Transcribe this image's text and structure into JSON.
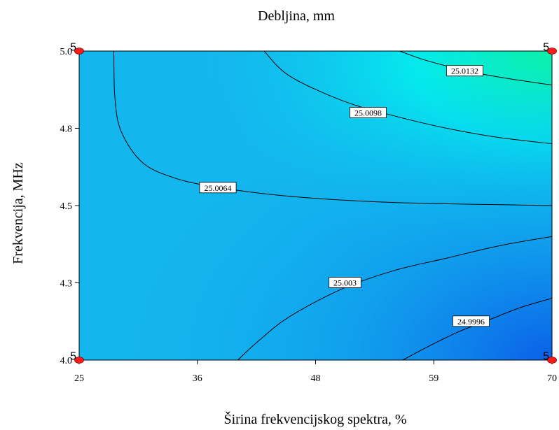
{
  "chart_data": {
    "type": "contour",
    "title": "Debljina, mm",
    "xlabel": "Širina frekvencijskog spektra, %",
    "ylabel": "Frekvencija, MHz",
    "xlim": [
      25,
      70
    ],
    "ylim": [
      4.0,
      5.0
    ],
    "x_ticks": [
      {
        "value": 25,
        "label": "25"
      },
      {
        "value": 36.25,
        "label": "36"
      },
      {
        "value": 47.5,
        "label": "48"
      },
      {
        "value": 58.75,
        "label": "59"
      },
      {
        "value": 70,
        "label": "70"
      }
    ],
    "y_ticks": [
      {
        "value": 4.0,
        "label": "4.0"
      },
      {
        "value": 4.25,
        "label": "4.3"
      },
      {
        "value": 4.5,
        "label": "4.5"
      },
      {
        "value": 4.75,
        "label": "4.8"
      },
      {
        "value": 5.0,
        "label": "5.0"
      }
    ],
    "contours": [
      {
        "label": "25.0132",
        "label_at": [
          61.7,
          4.935
        ],
        "points": [
          [
            55.5,
            5.0
          ],
          [
            58,
            4.97
          ],
          [
            62,
            4.935
          ],
          [
            66,
            4.91
          ],
          [
            70,
            4.89
          ]
        ]
      },
      {
        "label": "25.0098",
        "label_at": [
          52.5,
          4.8
        ],
        "points": [
          [
            42.6,
            5.0
          ],
          [
            45,
            4.92
          ],
          [
            50,
            4.84
          ],
          [
            55,
            4.79
          ],
          [
            60,
            4.75
          ],
          [
            65,
            4.72
          ],
          [
            70,
            4.7
          ]
        ]
      },
      {
        "label": "25.0064",
        "label_at": [
          38.2,
          4.557
        ],
        "points": [
          [
            28.3,
            5.0
          ],
          [
            28.4,
            4.85
          ],
          [
            29,
            4.74
          ],
          [
            31,
            4.64
          ],
          [
            34,
            4.59
          ],
          [
            38,
            4.56
          ],
          [
            45,
            4.53
          ],
          [
            55,
            4.51
          ],
          [
            70,
            4.5
          ]
        ]
      },
      {
        "label": "25.003",
        "label_at": [
          50.3,
          4.25
        ],
        "points": [
          [
            40.1,
            4.0
          ],
          [
            42,
            4.06
          ],
          [
            45,
            4.14
          ],
          [
            50,
            4.23
          ],
          [
            55,
            4.29
          ],
          [
            60,
            4.33
          ],
          [
            65,
            4.37
          ],
          [
            70,
            4.4
          ]
        ]
      },
      {
        "label": "24.9996",
        "label_at": [
          62.3,
          4.125
        ],
        "points": [
          [
            55.8,
            4.0
          ],
          [
            58,
            4.04
          ],
          [
            61,
            4.09
          ],
          [
            64,
            4.13
          ],
          [
            67,
            4.17
          ],
          [
            70,
            4.2
          ]
        ]
      }
    ],
    "design_points": [
      {
        "x": 25,
        "y": 5.0,
        "count": "5"
      },
      {
        "x": 70,
        "y": 5.0,
        "count": "5"
      },
      {
        "x": 25,
        "y": 4.0,
        "count": "5"
      },
      {
        "x": 70,
        "y": 4.0,
        "count": "5"
      }
    ],
    "colormap": {
      "low": "#0a5fe8",
      "mid": "#14c0ef",
      "mid_high": "#03eeee",
      "high": "#0cf0a8"
    },
    "contour_color": "#000000",
    "point_color": "#ff1a1a",
    "grid": false,
    "legend": "none"
  }
}
